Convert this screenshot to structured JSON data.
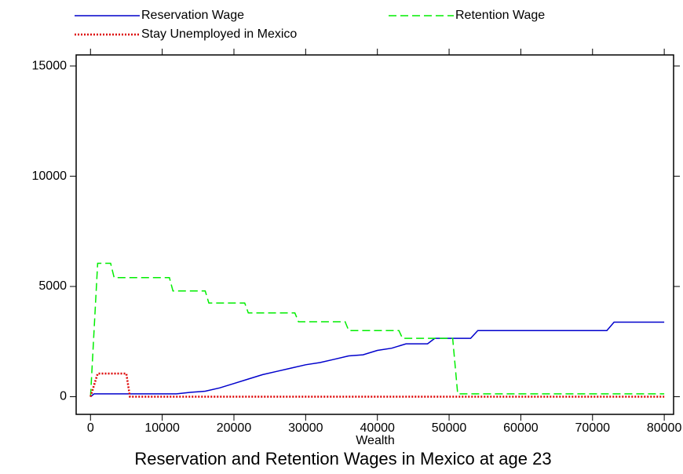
{
  "chart_data": {
    "type": "line",
    "title": "Reservation and Retention Wages in Mexico at age 23",
    "x_label": "Wealth",
    "legend": "top",
    "xlim": [
      -2000,
      81300
    ],
    "ylim": [
      -800,
      15500
    ],
    "xticks": [
      0,
      10000,
      20000,
      30000,
      40000,
      50000,
      60000,
      70000,
      80000
    ],
    "yticks": [
      0,
      5000,
      10000,
      15000
    ],
    "series": [
      {
        "name": "Reservation Wage",
        "color": "#0000cc",
        "dash": "solid",
        "x": [
          0,
          500,
          12000,
          14000,
          16000,
          18000,
          20000,
          22000,
          24000,
          26000,
          28000,
          30000,
          32000,
          34000,
          36000,
          38000,
          40000,
          42000,
          44000,
          47000,
          48000,
          53000,
          54000,
          72000,
          73000,
          80000
        ],
        "values": [
          0,
          130,
          130,
          200,
          250,
          400,
          600,
          800,
          1000,
          1150,
          1300,
          1450,
          1550,
          1700,
          1850,
          1900,
          2100,
          2200,
          2400,
          2400,
          2650,
          2650,
          3000,
          3000,
          3380,
          3380
        ]
      },
      {
        "name": "Retention Wage",
        "color": "#00ee00",
        "dash": "dashed",
        "x": [
          0,
          1000,
          2800,
          3300,
          11000,
          11500,
          16000,
          16500,
          21500,
          22000,
          28500,
          29000,
          35500,
          36000,
          43000,
          43500,
          50500,
          51200,
          80000
        ],
        "values": [
          0,
          6050,
          6050,
          5400,
          5400,
          4800,
          4800,
          4250,
          4250,
          3800,
          3800,
          3400,
          3400,
          3000,
          3000,
          2650,
          2650,
          130,
          130
        ]
      },
      {
        "name": "Stay Unemployed in Mexico",
        "color": "#dd0000",
        "dash": "dotted",
        "x": [
          0,
          1000,
          5000,
          5500,
          80000
        ],
        "values": [
          0,
          1050,
          1050,
          0,
          0
        ]
      }
    ]
  }
}
